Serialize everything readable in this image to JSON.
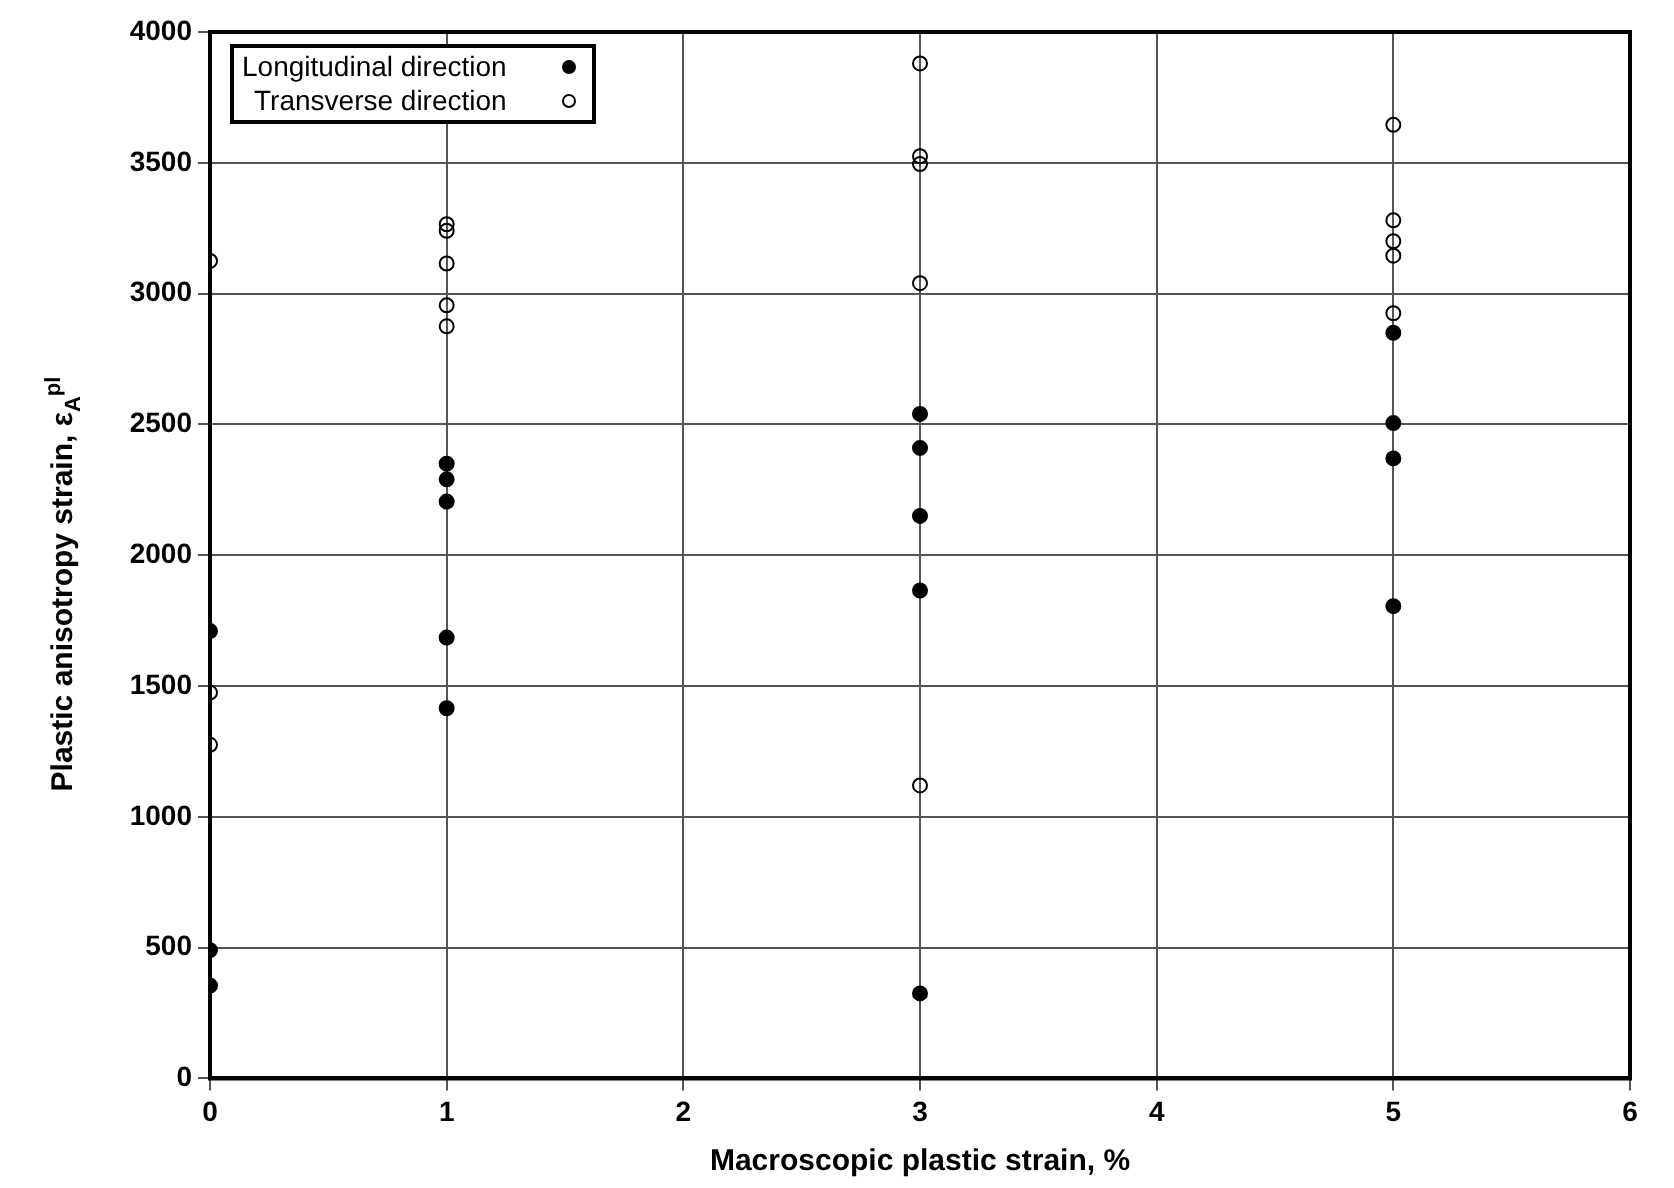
{
  "chart_data": {
    "type": "scatter",
    "xlabel": "Macroscopic plastic strain, %",
    "ylabel": "Plastic anisotropy strain, ε$_{A}$$^{pl}$",
    "xlim": [
      0,
      6
    ],
    "xticks": [
      0,
      1,
      2,
      3,
      4,
      5,
      6
    ],
    "ylim": [
      0,
      4000
    ],
    "yticks": [
      0,
      500,
      1000,
      1500,
      2000,
      2500,
      3000,
      3500,
      4000
    ],
    "grid": true,
    "legend": "top left",
    "marker": "circle",
    "series": [
      {
        "name": "Longitudinal direction",
        "color": "#000000",
        "x": [
          0,
          0,
          0,
          1,
          1,
          1,
          1,
          1,
          3,
          3,
          3,
          3,
          3,
          5,
          5,
          5,
          5
        ],
        "values": [
          1710,
          490,
          355,
          2350,
          2290,
          2205,
          1685,
          1415,
          2540,
          2410,
          2150,
          1865,
          325,
          2850,
          2505,
          2370,
          1805
        ]
      },
      {
        "name": "Transverse direction",
        "color": "#000000",
        "x": [
          0,
          0,
          0,
          1,
          1,
          1,
          1,
          1,
          3,
          3,
          3,
          3,
          3,
          5,
          5,
          5,
          5,
          5
        ],
        "values": [
          3125,
          1475,
          1275,
          3265,
          3240,
          3115,
          2955,
          2875,
          3880,
          3525,
          3495,
          3040,
          1120,
          3645,
          3280,
          3200,
          3145,
          2925
        ]
      }
    ]
  }
}
